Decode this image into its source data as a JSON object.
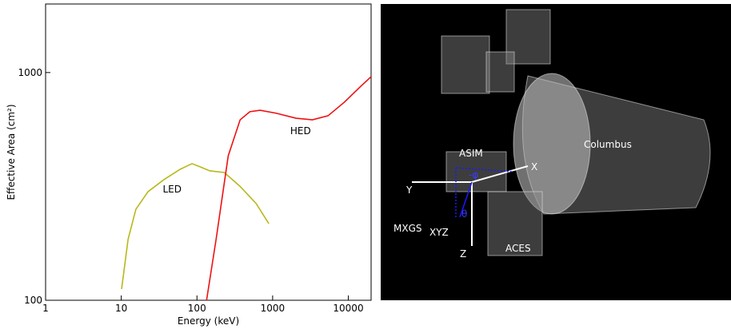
{
  "chart_data": {
    "type": "line",
    "x_label": "Energy (keV)",
    "y_label": "Effective Area (cm²)",
    "xlim": [
      1,
      20000
    ],
    "ylim": [
      100,
      2000
    ],
    "log_x": true,
    "log_y": true,
    "xticks": [
      1,
      10,
      100,
      1000,
      10000
    ],
    "yticks": [
      100,
      1000
    ],
    "series": [
      {
        "name": "LED",
        "color": "#b8b81c",
        "x": [
          10.1,
          12.3,
          15.6,
          22.6,
          36.8,
          60,
          86,
          105,
          148,
          230,
          372,
          605,
          890
        ],
        "values": [
          112,
          185,
          251,
          300,
          339,
          376,
          398,
          388,
          370,
          364,
          316,
          266,
          217
        ]
      },
      {
        "name": "HED",
        "color": "#ee1111",
        "x": [
          134,
          179,
          259,
          372,
          500,
          683,
          1110,
          2040,
          3350,
          5400,
          8870,
          14600,
          20000
        ],
        "values": [
          100,
          185,
          431,
          620,
          673,
          683,
          663,
          630,
          620,
          646,
          741,
          870,
          959
        ]
      }
    ],
    "annotations": [
      {
        "text": "LED",
        "x": 47,
        "y": 298
      },
      {
        "text": "HED",
        "x": 2340,
        "y": 536
      }
    ]
  },
  "image": {
    "labels": {
      "asim": "ASIM",
      "columbus": "Columbus",
      "aces": "ACES",
      "x": "X",
      "y": "Y",
      "z": "Z",
      "phi": "-φ",
      "theta": "θ",
      "mxgs": "MXGS",
      "mxgs_sub": "XYZ"
    }
  }
}
